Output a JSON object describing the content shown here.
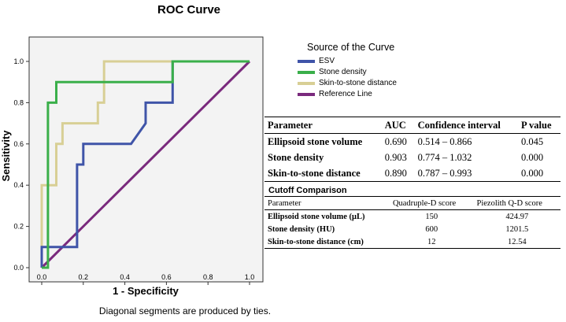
{
  "chart_data": {
    "type": "line",
    "title": "ROC Curve",
    "xlabel": "1 - Specificity",
    "ylabel": "Sensitivity",
    "xlim": [
      0,
      1
    ],
    "ylim": [
      0,
      1
    ],
    "x_ticks": [
      "0.0",
      "0.2",
      "0.4",
      "0.6",
      "0.8",
      "1.0"
    ],
    "y_ticks": [
      "0.0",
      "0.2",
      "0.4",
      "0.6",
      "0.8",
      "1.0"
    ],
    "footnote": "Diagonal segments are produced by ties.",
    "legend": {
      "title": "Source of the Curve",
      "placement": "top-right"
    },
    "series": [
      {
        "name": "ESV",
        "color": "#3f54a8",
        "points": [
          [
            0,
            0
          ],
          [
            0,
            0.1
          ],
          [
            0.03,
            0.1
          ],
          [
            0.17,
            0.1
          ],
          [
            0.17,
            0.5
          ],
          [
            0.2,
            0.5
          ],
          [
            0.2,
            0.6
          ],
          [
            0.43,
            0.6
          ],
          [
            0.5,
            0.7
          ],
          [
            0.5,
            0.8
          ],
          [
            0.6,
            0.8
          ],
          [
            0.63,
            0.8
          ],
          [
            0.63,
            1.0
          ],
          [
            1,
            1
          ]
        ]
      },
      {
        "name": "Stone density",
        "color": "#3aaf4a",
        "points": [
          [
            0,
            0
          ],
          [
            0.03,
            0
          ],
          [
            0.03,
            0.8
          ],
          [
            0.07,
            0.8
          ],
          [
            0.07,
            0.9
          ],
          [
            0.63,
            0.9
          ],
          [
            0.63,
            1.0
          ],
          [
            1,
            1
          ]
        ]
      },
      {
        "name": "Skin-to-stone distance",
        "color": "#d8cf95",
        "points": [
          [
            0,
            0
          ],
          [
            0,
            0.4
          ],
          [
            0.07,
            0.4
          ],
          [
            0.07,
            0.6
          ],
          [
            0.1,
            0.6
          ],
          [
            0.1,
            0.7
          ],
          [
            0.27,
            0.7
          ],
          [
            0.27,
            0.8
          ],
          [
            0.3,
            0.8
          ],
          [
            0.3,
            1.0
          ],
          [
            1,
            1
          ]
        ]
      },
      {
        "name": "Reference Line",
        "color": "#7a2a7d",
        "points": [
          [
            0,
            0
          ],
          [
            1,
            1
          ]
        ]
      }
    ]
  },
  "auc_table": {
    "headers": [
      "Parameter",
      "AUC",
      "Confidence interval",
      "P value"
    ],
    "rows": [
      [
        "Ellipsoid stone volume",
        "0.690",
        "0.514 – 0.866",
        "0.045"
      ],
      [
        "Stone density",
        "0.903",
        "0.774 – 1.032",
        "0.000"
      ],
      [
        "Skin-to-stone distance",
        "0.890",
        "0.787 – 0.993",
        "0.000"
      ]
    ]
  },
  "cutoff": {
    "title": "Cutoff Comparison",
    "headers": [
      "Parameter",
      "Quadruple-D score",
      "Piezolith Q-D score"
    ],
    "rows": [
      [
        "Ellipsoid stone volume (μL)",
        "150",
        "424.97"
      ],
      [
        "Stone density (HU)",
        "600",
        "1201.5"
      ],
      [
        "Skin-to-stone distance (cm)",
        "12",
        "12.54"
      ]
    ]
  }
}
